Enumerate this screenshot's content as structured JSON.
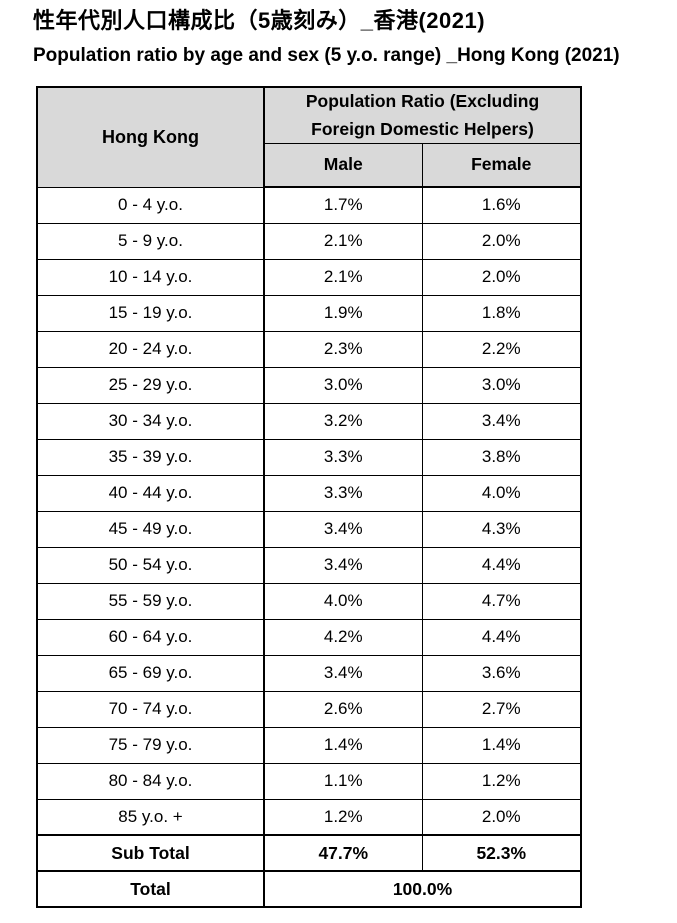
{
  "title": "性年代別人口構成比（5歳刻み）_香港(2021)",
  "subtitle": "Population ratio by age and sex (5 y.o. range) _Hong Kong (2021)",
  "table": {
    "corner_header": "Hong Kong",
    "group_header": "Population Ratio (Excluding Foreign Domestic Helpers)",
    "col_headers": [
      "Male",
      "Female"
    ],
    "rows": [
      {
        "label": "0 - 4 y.o.",
        "male": "1.7%",
        "female": "1.6%"
      },
      {
        "label": "5 - 9 y.o.",
        "male": "2.1%",
        "female": "2.0%"
      },
      {
        "label": "10 - 14 y.o.",
        "male": "2.1%",
        "female": "2.0%"
      },
      {
        "label": "15 - 19 y.o.",
        "male": "1.9%",
        "female": "1.8%"
      },
      {
        "label": "20 - 24 y.o.",
        "male": "2.3%",
        "female": "2.2%"
      },
      {
        "label": "25 - 29 y.o.",
        "male": "3.0%",
        "female": "3.0%"
      },
      {
        "label": "30 - 34 y.o.",
        "male": "3.2%",
        "female": "3.4%"
      },
      {
        "label": "35 - 39 y.o.",
        "male": "3.3%",
        "female": "3.8%"
      },
      {
        "label": "40 - 44 y.o.",
        "male": "3.3%",
        "female": "4.0%"
      },
      {
        "label": "45 - 49 y.o.",
        "male": "3.4%",
        "female": "4.3%"
      },
      {
        "label": "50 - 54 y.o.",
        "male": "3.4%",
        "female": "4.4%"
      },
      {
        "label": "55 - 59 y.o.",
        "male": "4.0%",
        "female": "4.7%"
      },
      {
        "label": "60 - 64 y.o.",
        "male": "4.2%",
        "female": "4.4%"
      },
      {
        "label": "65 - 69 y.o.",
        "male": "3.4%",
        "female": "3.6%"
      },
      {
        "label": "70 - 74 y.o.",
        "male": "2.6%",
        "female": "2.7%"
      },
      {
        "label": "75 - 79 y.o.",
        "male": "1.4%",
        "female": "1.4%"
      },
      {
        "label": "80 - 84 y.o.",
        "male": "1.1%",
        "female": "1.2%"
      },
      {
        "label": "85 y.o. +",
        "male": "1.2%",
        "female": "2.0%"
      }
    ],
    "sub_total": {
      "label": "Sub Total",
      "male": "47.7%",
      "female": "52.3%"
    },
    "total": {
      "label": "Total",
      "value": "100.0%"
    }
  },
  "colors": {
    "header_bg": "#d9d9d9",
    "border": "#000000",
    "text": "#000000",
    "background": "#ffffff"
  },
  "chart_data": {
    "type": "table",
    "title": "性年代別人口構成比（5歳刻み）_香港(2021)",
    "subtitle": "Population ratio by age and sex (5 y.o. range) _Hong Kong (2021)",
    "columns": [
      "Hong Kong",
      "Male",
      "Female"
    ],
    "categories": [
      "0 - 4 y.o.",
      "5 - 9 y.o.",
      "10 - 14 y.o.",
      "15 - 19 y.o.",
      "20 - 24 y.o.",
      "25 - 29 y.o.",
      "30 - 34 y.o.",
      "35 - 39 y.o.",
      "40 - 44 y.o.",
      "45 - 49 y.o.",
      "50 - 54 y.o.",
      "55 - 59 y.o.",
      "60 - 64 y.o.",
      "65 - 69 y.o.",
      "70 - 74 y.o.",
      "75 - 79 y.o.",
      "80 - 84 y.o.",
      "85 y.o. +"
    ],
    "series": [
      {
        "name": "Male",
        "unit": "%",
        "values": [
          1.7,
          2.1,
          2.1,
          1.9,
          2.3,
          3.0,
          3.2,
          3.3,
          3.3,
          3.4,
          3.4,
          4.0,
          4.2,
          3.4,
          2.6,
          1.4,
          1.1,
          1.2
        ]
      },
      {
        "name": "Female",
        "unit": "%",
        "values": [
          1.6,
          2.0,
          2.0,
          1.8,
          2.2,
          3.0,
          3.4,
          3.8,
          4.0,
          4.3,
          4.4,
          4.7,
          4.4,
          3.6,
          2.7,
          1.4,
          1.2,
          2.0
        ]
      }
    ],
    "sub_total": {
      "male": 47.7,
      "female": 52.3
    },
    "total": 100.0,
    "notes": "Excluding Foreign Domestic Helpers"
  }
}
